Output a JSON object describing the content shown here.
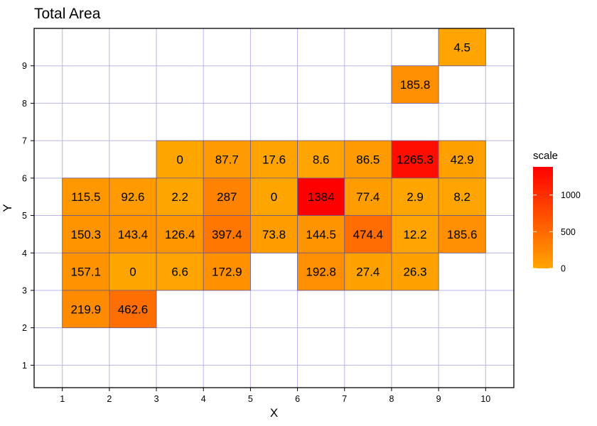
{
  "chart_data": {
    "type": "heatmap",
    "title": "Total Area",
    "xlabel": "X",
    "ylabel": "Y",
    "x_ticks": [
      1,
      2,
      3,
      4,
      5,
      6,
      7,
      8,
      9,
      10
    ],
    "y_ticks": [
      1,
      2,
      3,
      4,
      5,
      6,
      7,
      8,
      9
    ],
    "xlim": [
      0.4,
      10.6
    ],
    "ylim": [
      0.4,
      10.0
    ],
    "grid": true,
    "cells": [
      {
        "x": 9,
        "y": 9,
        "value": 4.5,
        "label": "4.5"
      },
      {
        "x": 8,
        "y": 8,
        "value": 185.8,
        "label": "185.8"
      },
      {
        "x": 3,
        "y": 6,
        "value": 0,
        "label": "0"
      },
      {
        "x": 4,
        "y": 6,
        "value": 87.7,
        "label": "87.7"
      },
      {
        "x": 5,
        "y": 6,
        "value": 17.6,
        "label": "17.6"
      },
      {
        "x": 6,
        "y": 6,
        "value": 8.6,
        "label": "8.6"
      },
      {
        "x": 7,
        "y": 6,
        "value": 86.5,
        "label": "86.5"
      },
      {
        "x": 8,
        "y": 6,
        "value": 1265.3,
        "label": "1265.3"
      },
      {
        "x": 9,
        "y": 6,
        "value": 42.9,
        "label": "42.9"
      },
      {
        "x": 1,
        "y": 5,
        "value": 115.5,
        "label": "115.5"
      },
      {
        "x": 2,
        "y": 5,
        "value": 92.6,
        "label": "92.6"
      },
      {
        "x": 3,
        "y": 5,
        "value": 2.2,
        "label": "2.2"
      },
      {
        "x": 4,
        "y": 5,
        "value": 287,
        "label": "287"
      },
      {
        "x": 5,
        "y": 5,
        "value": 0,
        "label": "0"
      },
      {
        "x": 6,
        "y": 5,
        "value": 1384,
        "label": "1384"
      },
      {
        "x": 7,
        "y": 5,
        "value": 77.4,
        "label": "77.4"
      },
      {
        "x": 8,
        "y": 5,
        "value": 2.9,
        "label": "2.9"
      },
      {
        "x": 9,
        "y": 5,
        "value": 8.2,
        "label": "8.2"
      },
      {
        "x": 1,
        "y": 4,
        "value": 150.3,
        "label": "150.3"
      },
      {
        "x": 2,
        "y": 4,
        "value": 143.4,
        "label": "143.4"
      },
      {
        "x": 3,
        "y": 4,
        "value": 126.4,
        "label": "126.4"
      },
      {
        "x": 4,
        "y": 4,
        "value": 397.4,
        "label": "397.4"
      },
      {
        "x": 5,
        "y": 4,
        "value": 73.8,
        "label": "73.8"
      },
      {
        "x": 6,
        "y": 4,
        "value": 144.5,
        "label": "144.5"
      },
      {
        "x": 7,
        "y": 4,
        "value": 474.4,
        "label": "474.4"
      },
      {
        "x": 8,
        "y": 4,
        "value": 12.2,
        "label": "12.2"
      },
      {
        "x": 9,
        "y": 4,
        "value": 185.6,
        "label": "185.6"
      },
      {
        "x": 1,
        "y": 3,
        "value": 157.1,
        "label": "157.1"
      },
      {
        "x": 2,
        "y": 3,
        "value": 0,
        "label": "0"
      },
      {
        "x": 3,
        "y": 3,
        "value": 6.6,
        "label": "6.6"
      },
      {
        "x": 4,
        "y": 3,
        "value": 172.9,
        "label": "172.9"
      },
      {
        "x": 6,
        "y": 3,
        "value": 192.8,
        "label": "192.8"
      },
      {
        "x": 7,
        "y": 3,
        "value": 27.4,
        "label": "27.4"
      },
      {
        "x": 8,
        "y": 3,
        "value": 26.3,
        "label": "26.3"
      },
      {
        "x": 1,
        "y": 2,
        "value": 219.9,
        "label": "219.9"
      },
      {
        "x": 2,
        "y": 2,
        "value": 462.6,
        "label": "462.6"
      }
    ],
    "legend": {
      "title": "scale",
      "position": "right",
      "ticks": [
        0,
        500,
        1000
      ],
      "range": [
        0,
        1384
      ],
      "colors": {
        "low": "#FFA500",
        "high": "#FF0000"
      }
    }
  }
}
